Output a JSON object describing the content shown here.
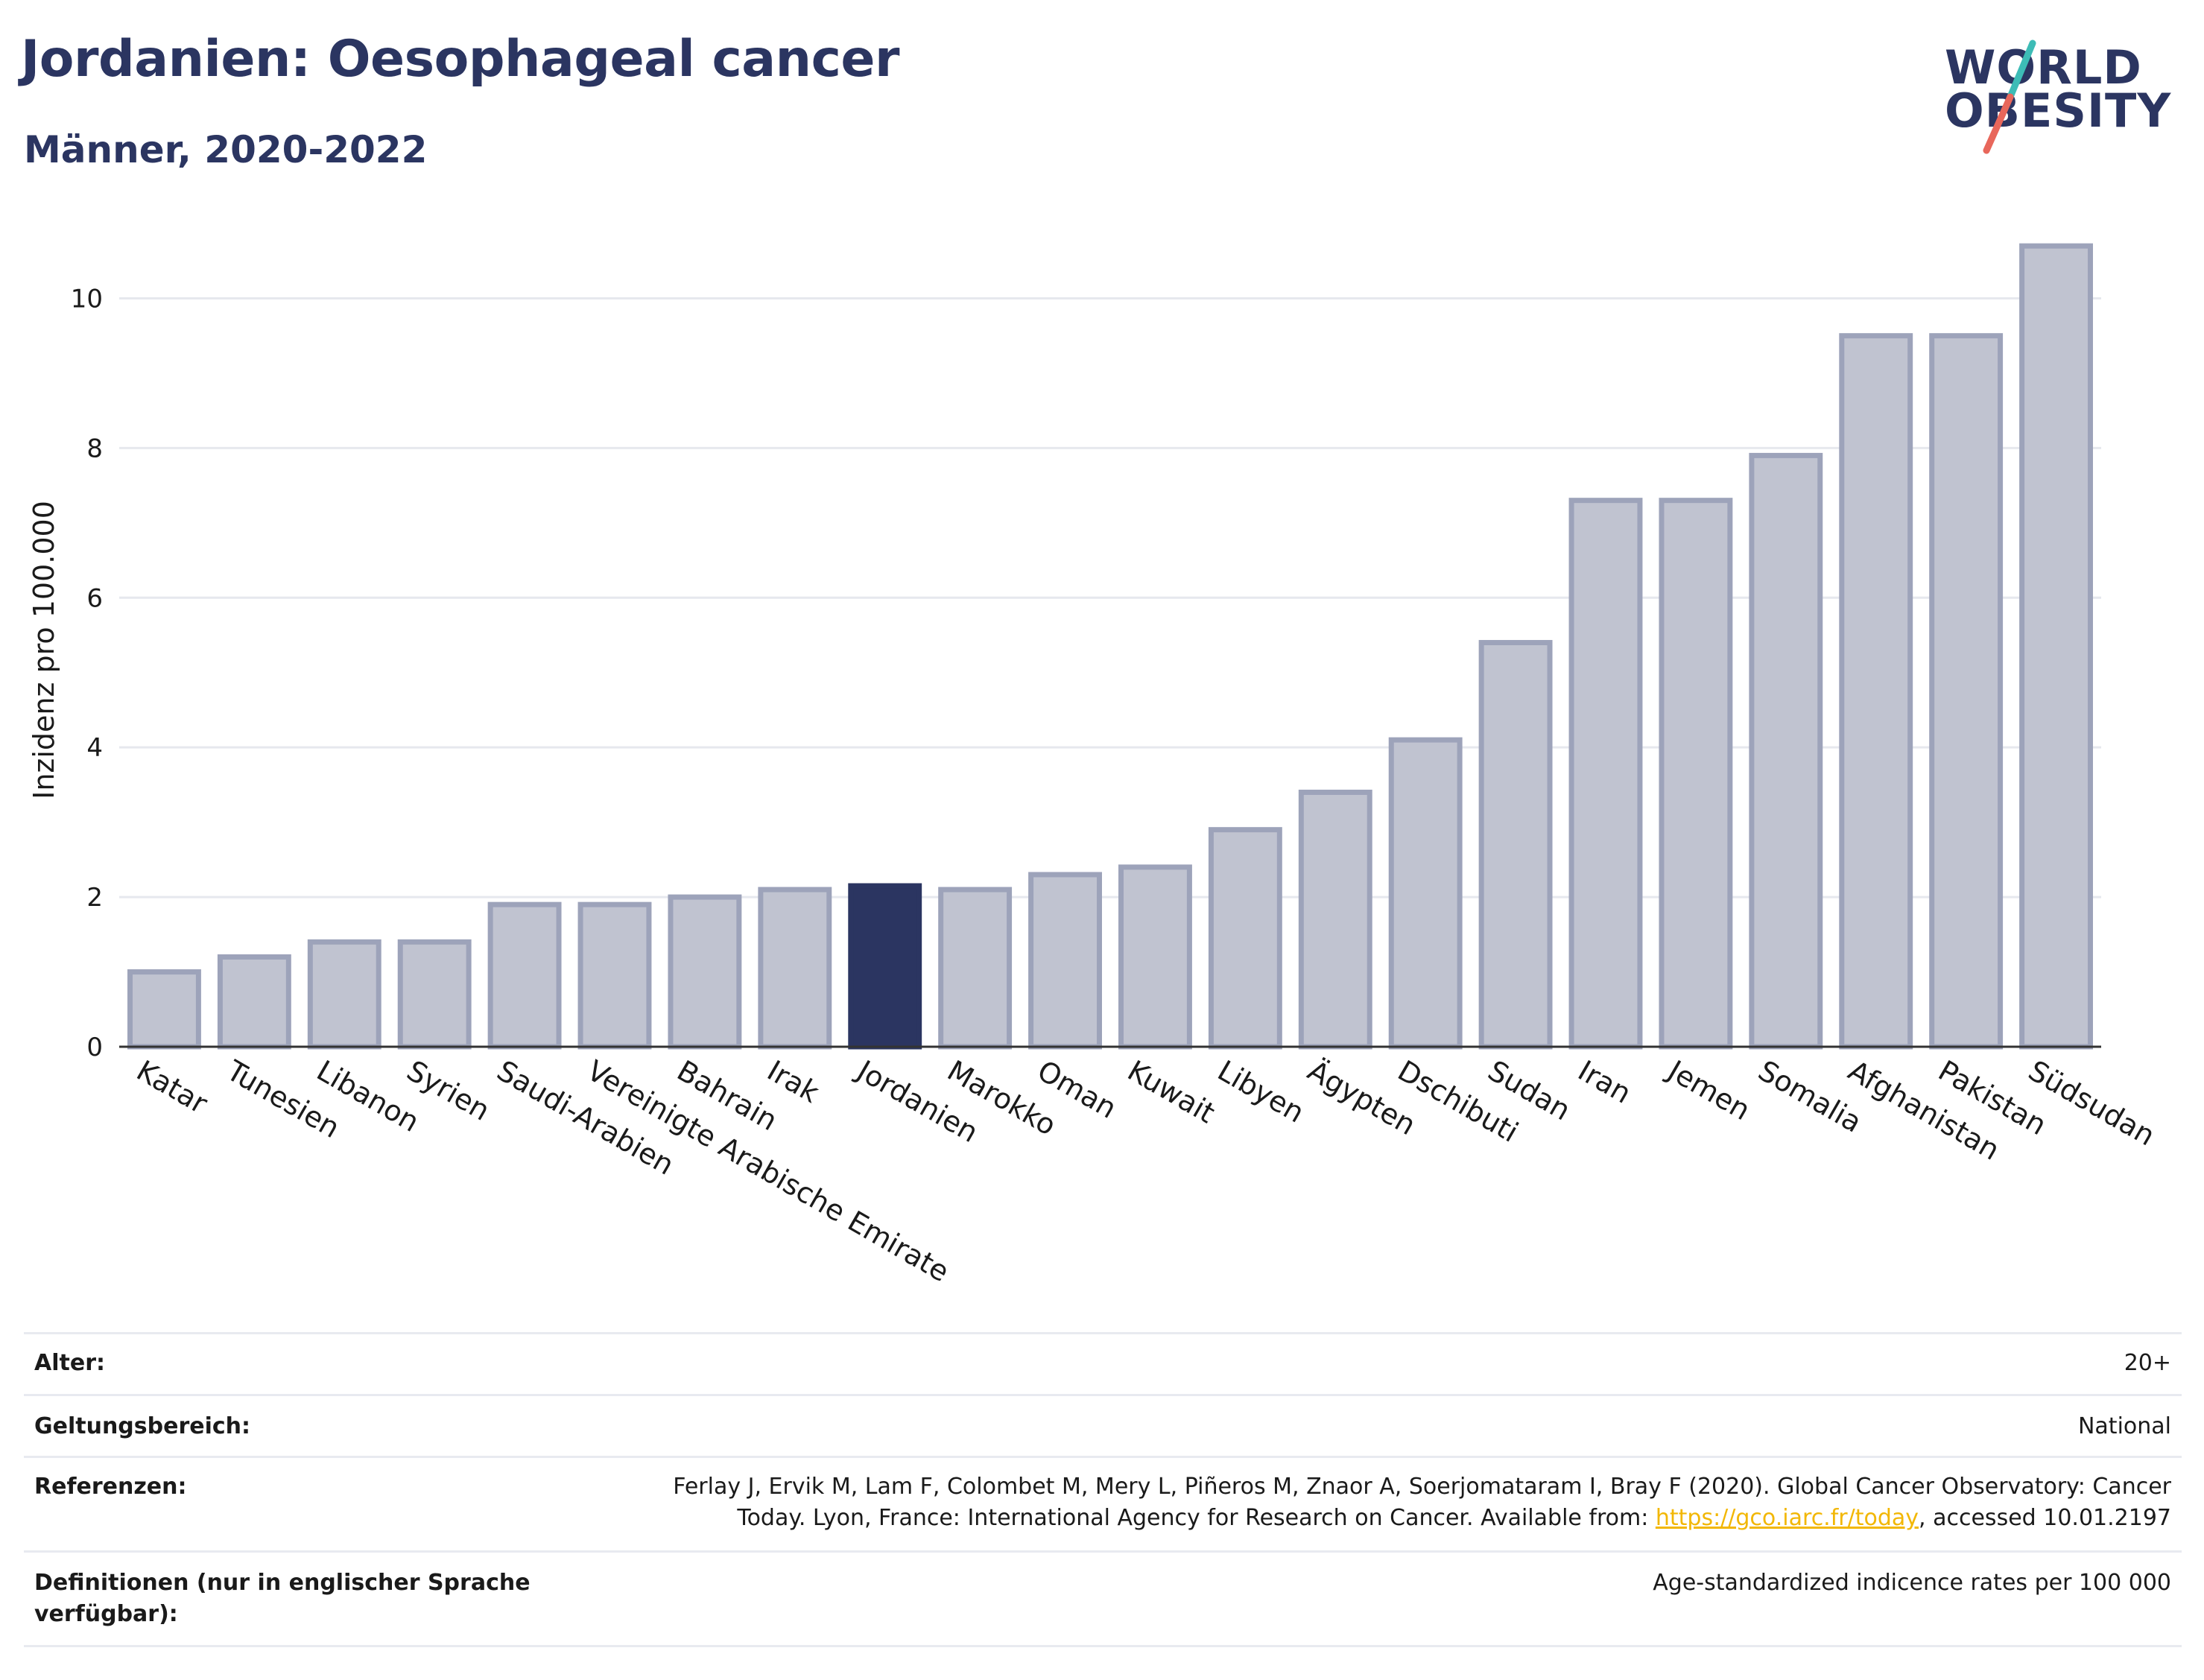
{
  "header": {
    "title": "Jordanien: Oesophageal cancer",
    "subtitle": "Männer, 2020-2022"
  },
  "logo": {
    "line1": "WORLD",
    "line2": "OBESITY",
    "accent_teal": "#3dbcb6",
    "accent_coral": "#e8675b"
  },
  "colors": {
    "bar": "#c0c3d0",
    "bar_border": "#9da3ba",
    "highlight": "#2b3561",
    "text": "#2b3561"
  },
  "chart_data": {
    "type": "bar",
    "ylabel": "Inzidenz pro 100.000",
    "ylim": [
      0,
      11
    ],
    "yticks": [
      0,
      2,
      4,
      6,
      8,
      10
    ],
    "grid": true,
    "highlight": "Jordanien",
    "categories": [
      "Katar",
      "Tunesien",
      "Libanon",
      "Syrien",
      "Saudi-Arabien",
      "Vereinigte Arabische Emirate",
      "Bahrain",
      "Irak",
      "Jordanien",
      "Marokko",
      "Oman",
      "Kuwait",
      "Libyen",
      "Ägypten",
      "Dschibuti",
      "Sudan",
      "Iran",
      "Jemen",
      "Somalia",
      "Afghanistan",
      "Pakistan",
      "Südsudan"
    ],
    "values": [
      1.0,
      1.2,
      1.4,
      1.4,
      1.9,
      1.9,
      2.0,
      2.1,
      2.15,
      2.1,
      2.3,
      2.4,
      2.9,
      3.4,
      4.1,
      5.4,
      7.3,
      7.3,
      7.9,
      9.5,
      9.5,
      10.7
    ]
  },
  "info": {
    "alter_label": "Alter:",
    "alter_value": "20+",
    "scope_label": "Geltungsbereich:",
    "scope_value": "National",
    "ref_label": "Referenzen:",
    "ref_line1": "Ferlay J, Ervik M, Lam F, Colombet M, Mery L, Piñeros M, Znaor A, Soerjomataram I, Bray F (2020). Global Cancer Observatory: Cancer",
    "ref_line2_pre": "Today. Lyon, France: International Agency for Research on Cancer. Available from: ",
    "ref_link": "https://gco.iarc.fr/today",
    "ref_line2_post": ", accessed 10.01.2197",
    "def_label_line1": "Definitionen (nur in englischer Sprache",
    "def_label_line2": "verfügbar):",
    "def_value": "Age-standardized indicence rates per 100 000"
  }
}
